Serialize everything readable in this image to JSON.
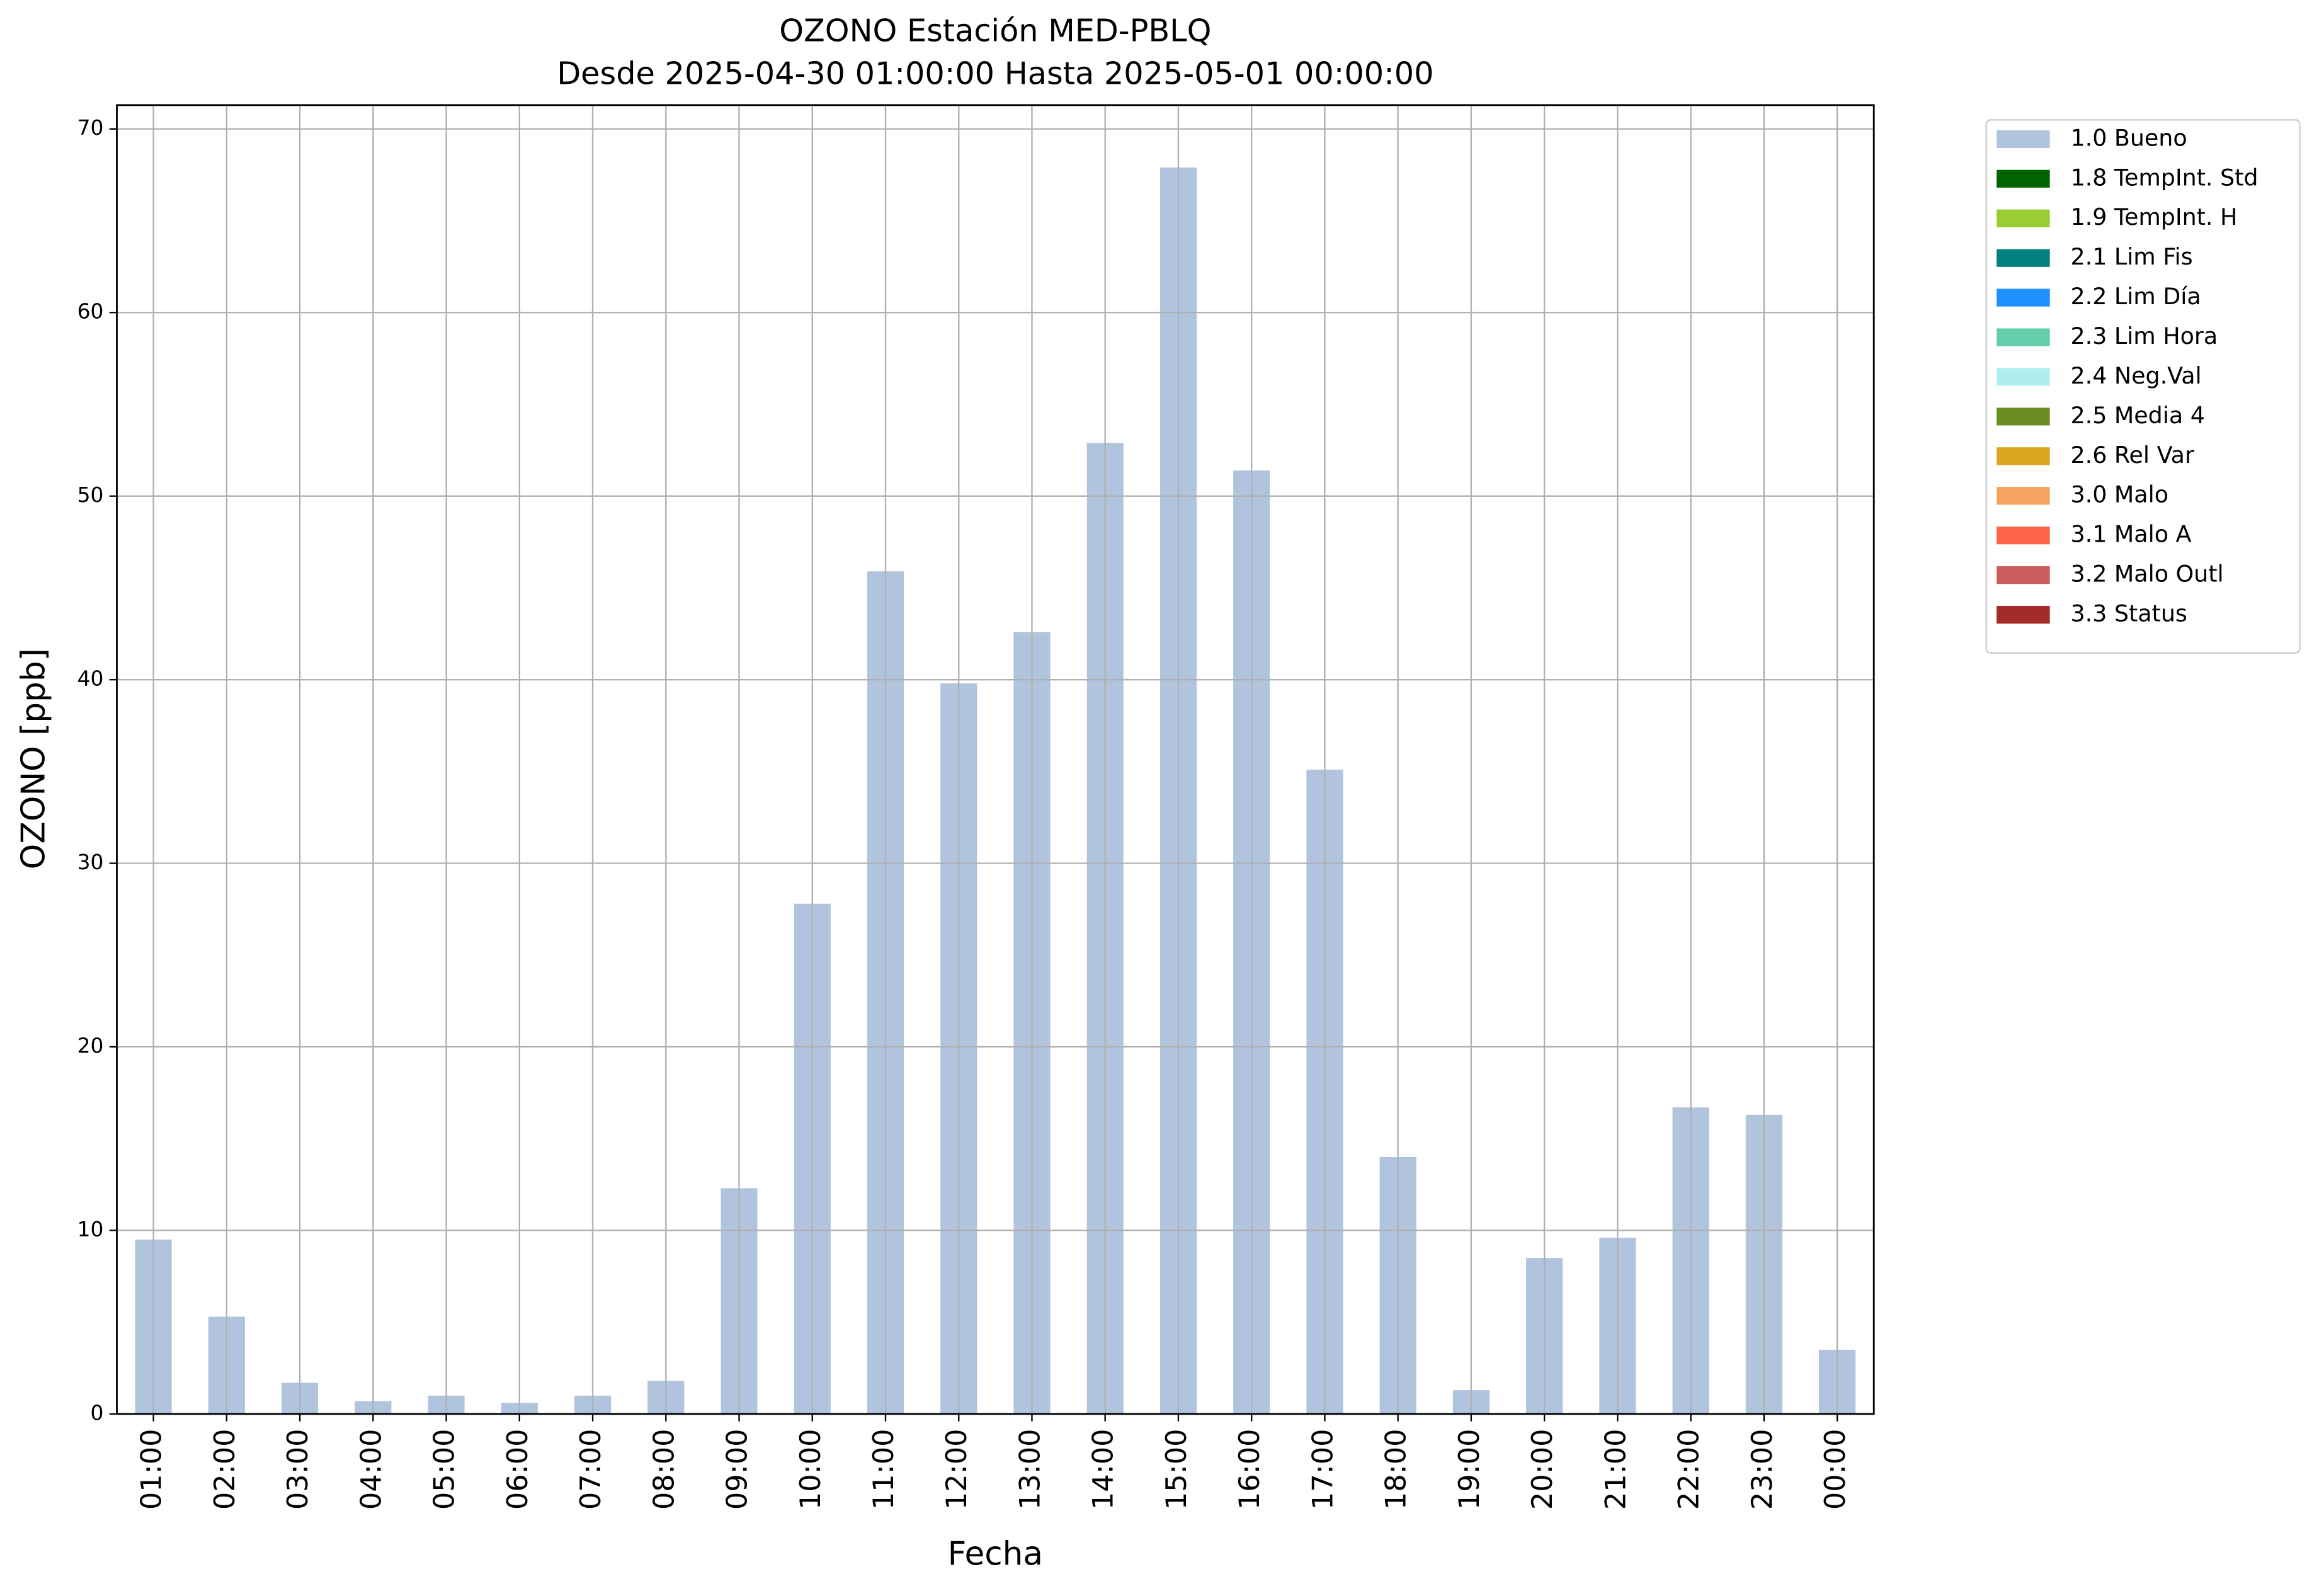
{
  "chart_data": {
    "type": "bar",
    "title": "OZONO Estación MED-PBLQ",
    "subtitle": "Desde 2025-04-30 01:00:00 Hasta 2025-05-01 00:00:00",
    "x_label": "Fecha",
    "y_label": "OZONO [ppb]",
    "categories": [
      "01:00",
      "02:00",
      "03:00",
      "04:00",
      "05:00",
      "06:00",
      "07:00",
      "08:00",
      "09:00",
      "10:00",
      "11:00",
      "12:00",
      "13:00",
      "14:00",
      "15:00",
      "16:00",
      "17:00",
      "18:00",
      "19:00",
      "20:00",
      "21:00",
      "22:00",
      "23:00",
      "00:00"
    ],
    "series": [
      {
        "name": "1.0 Bueno",
        "color": "#b0c4de",
        "values": [
          9.5,
          5.3,
          1.7,
          0.7,
          1.0,
          0.6,
          1.0,
          1.8,
          12.3,
          27.8,
          45.9,
          39.8,
          42.6,
          52.9,
          67.9,
          51.4,
          35.1,
          14.0,
          1.3,
          8.5,
          9.6,
          16.7,
          16.3,
          3.5
        ]
      },
      {
        "name": "1.8 TempInt. Std",
        "color": "#006400"
      },
      {
        "name": "1.9 TempInt. H",
        "color": "#9acd32"
      },
      {
        "name": "2.1 Lim Fis",
        "color": "#008080"
      },
      {
        "name": "2.2 Lim Día",
        "color": "#1e90ff"
      },
      {
        "name": "2.3 Lim Hora",
        "color": "#66cdaa"
      },
      {
        "name": "2.4 Neg.Val",
        "color": "#afeeee"
      },
      {
        "name": "2.5 Media 4",
        "color": "#6b8e23"
      },
      {
        "name": "2.6 Rel Var",
        "color": "#daa520"
      },
      {
        "name": "3.0 Malo",
        "color": "#f4a460"
      },
      {
        "name": "3.1 Malo A",
        "color": "#ff6347"
      },
      {
        "name": "3.2 Malo Outl",
        "color": "#cd5c5c"
      },
      {
        "name": "3.3 Status",
        "color": "#a52a2a"
      }
    ],
    "ylim": [
      0,
      71.3
    ],
    "yticks": [
      0,
      10,
      20,
      30,
      40,
      50,
      60,
      70
    ],
    "grid": true,
    "legend": "outside-right"
  }
}
